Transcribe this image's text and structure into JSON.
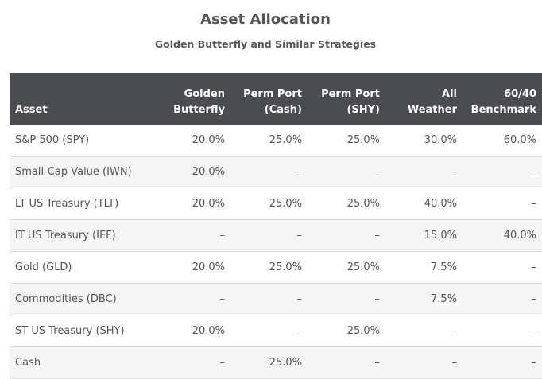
{
  "title": "Asset Allocation",
  "subtitle": "Golden Butterfly and Similar Strategies",
  "table": {
    "headers": [
      {
        "line1": "",
        "line2": "Asset"
      },
      {
        "line1": "Golden",
        "line2": "Butterfly"
      },
      {
        "line1": "Perm Port",
        "line2": "(Cash)"
      },
      {
        "line1": "Perm Port",
        "line2": "(SHY)"
      },
      {
        "line1": "All",
        "line2": "Weather"
      },
      {
        "line1": "60/40",
        "line2": "Benchmark"
      }
    ],
    "rows": [
      [
        "S&P 500 (SPY)",
        "20.0%",
        "25.0%",
        "25.0%",
        "30.0%",
        "60.0%"
      ],
      [
        "Small-Cap Value (IWN)",
        "20.0%",
        "–",
        "–",
        "–",
        "–"
      ],
      [
        "LT US Treasury (TLT)",
        "20.0%",
        "25.0%",
        "25.0%",
        "40.0%",
        "–"
      ],
      [
        "IT US Treasury (IEF)",
        "–",
        "–",
        "–",
        "15.0%",
        "40.0%"
      ],
      [
        "Gold (GLD)",
        "20.0%",
        "25.0%",
        "25.0%",
        "7.5%",
        "–"
      ],
      [
        "Commodities (DBC)",
        "–",
        "–",
        "–",
        "7.5%",
        "–"
      ],
      [
        "ST US Treasury (SHY)",
        "20.0%",
        "–",
        "25.0%",
        "–",
        "–"
      ],
      [
        "Cash",
        "–",
        "25.0%",
        "–",
        "–",
        "–"
      ]
    ]
  },
  "colors": {
    "header_bg": "#4a4c50",
    "header_text": "#ffffff",
    "body_text": "#555555",
    "stripe": "#f5f5f5",
    "border": "#dddddd"
  }
}
